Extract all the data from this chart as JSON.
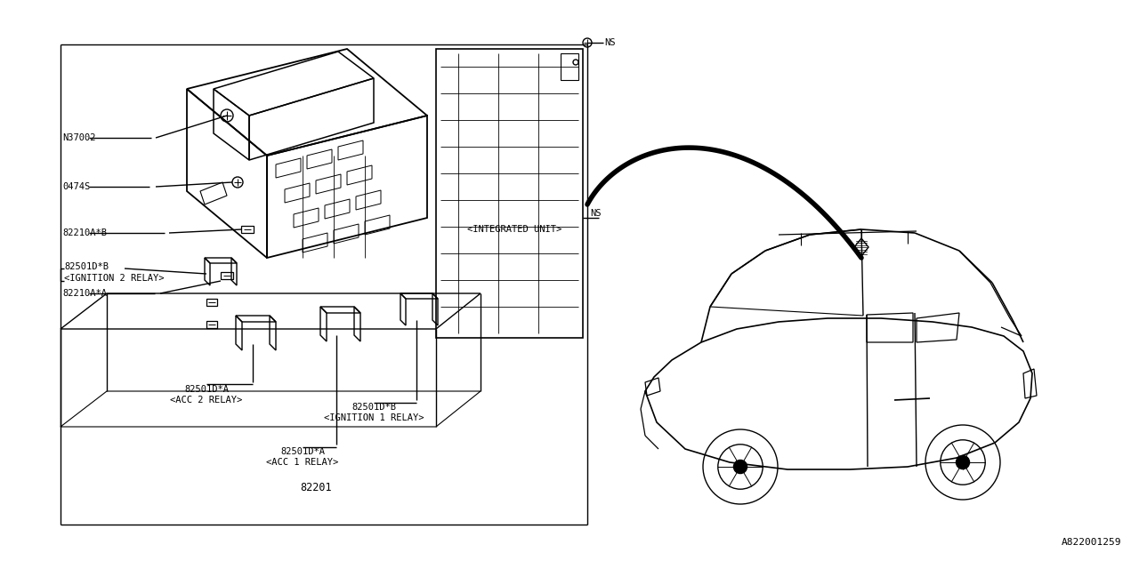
{
  "bg_color": "#ffffff",
  "lc": "#000000",
  "tc": "#000000",
  "labels": {
    "NS_screw": "NS",
    "NS_integrated_1": "NS",
    "NS_integrated_2": "<INTEGRATED UNIT>",
    "N37002": "N37002",
    "0474S": "0474S",
    "82210AB": "82210A*B",
    "82501DB_label": "82501D*B",
    "ign2_relay": "<IGNITION 2 RELAY>",
    "82210AA": "82210A*A",
    "acc2_1": "82501D*A",
    "acc2_2": "<ACC 2 RELAY>",
    "ign1_1": "82501D*B",
    "ign1_2": "<IGNITION 1 RELAY>",
    "acc1_1": "82501D*A",
    "acc1_2": "<ACC 1 RELAY>",
    "part_main": "82201",
    "part_num": "A822001259"
  }
}
